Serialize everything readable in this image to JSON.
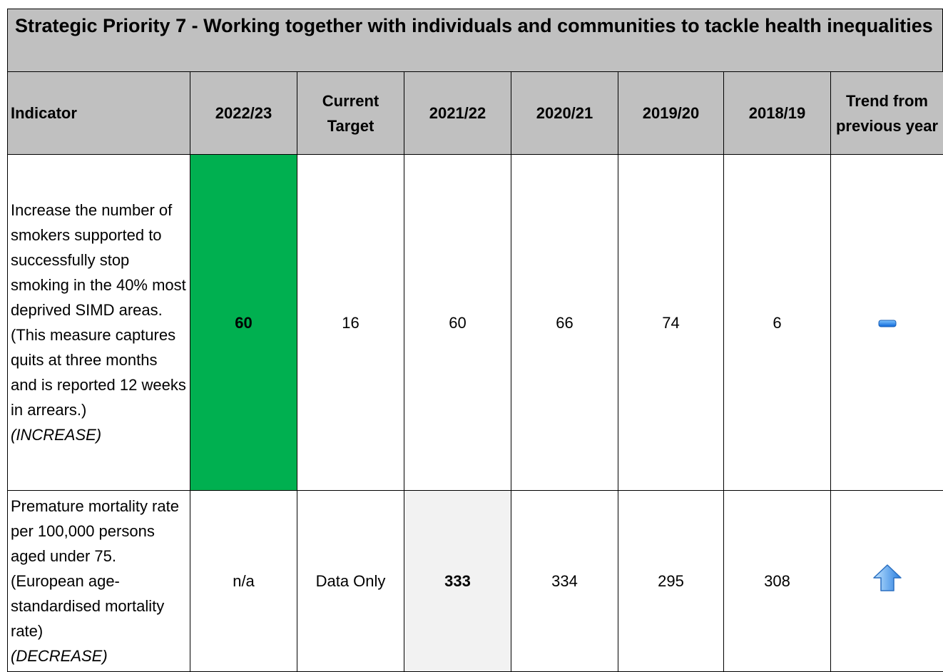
{
  "title": "Strategic Priority 7 - Working together with individuals and communities to tackle health inequalities",
  "table": {
    "headers": [
      "Indicator",
      "2022/23",
      "Current Target",
      "2021/22",
      "2020/21",
      "2019/20",
      "2018/19",
      "Trend from previous year"
    ],
    "rows": [
      {
        "indicator": "Increase the number of smokers supported to successfully stop smoking in the 40% most deprived SIMD areas. (This measure captures quits at three months and is reported 12 weeks in arrears.)",
        "direction": "(INCREASE)",
        "values": [
          "60",
          "16",
          "60",
          "66",
          "74",
          "6"
        ]
      },
      {
        "indicator": "Premature mortality rate per 100,000 persons aged under 75. (European age-standardised mortality rate)",
        "direction": "(DECREASE)",
        "values": [
          "n/a",
          "Data Only",
          "333",
          "334",
          "295",
          "308"
        ]
      }
    ]
  }
}
